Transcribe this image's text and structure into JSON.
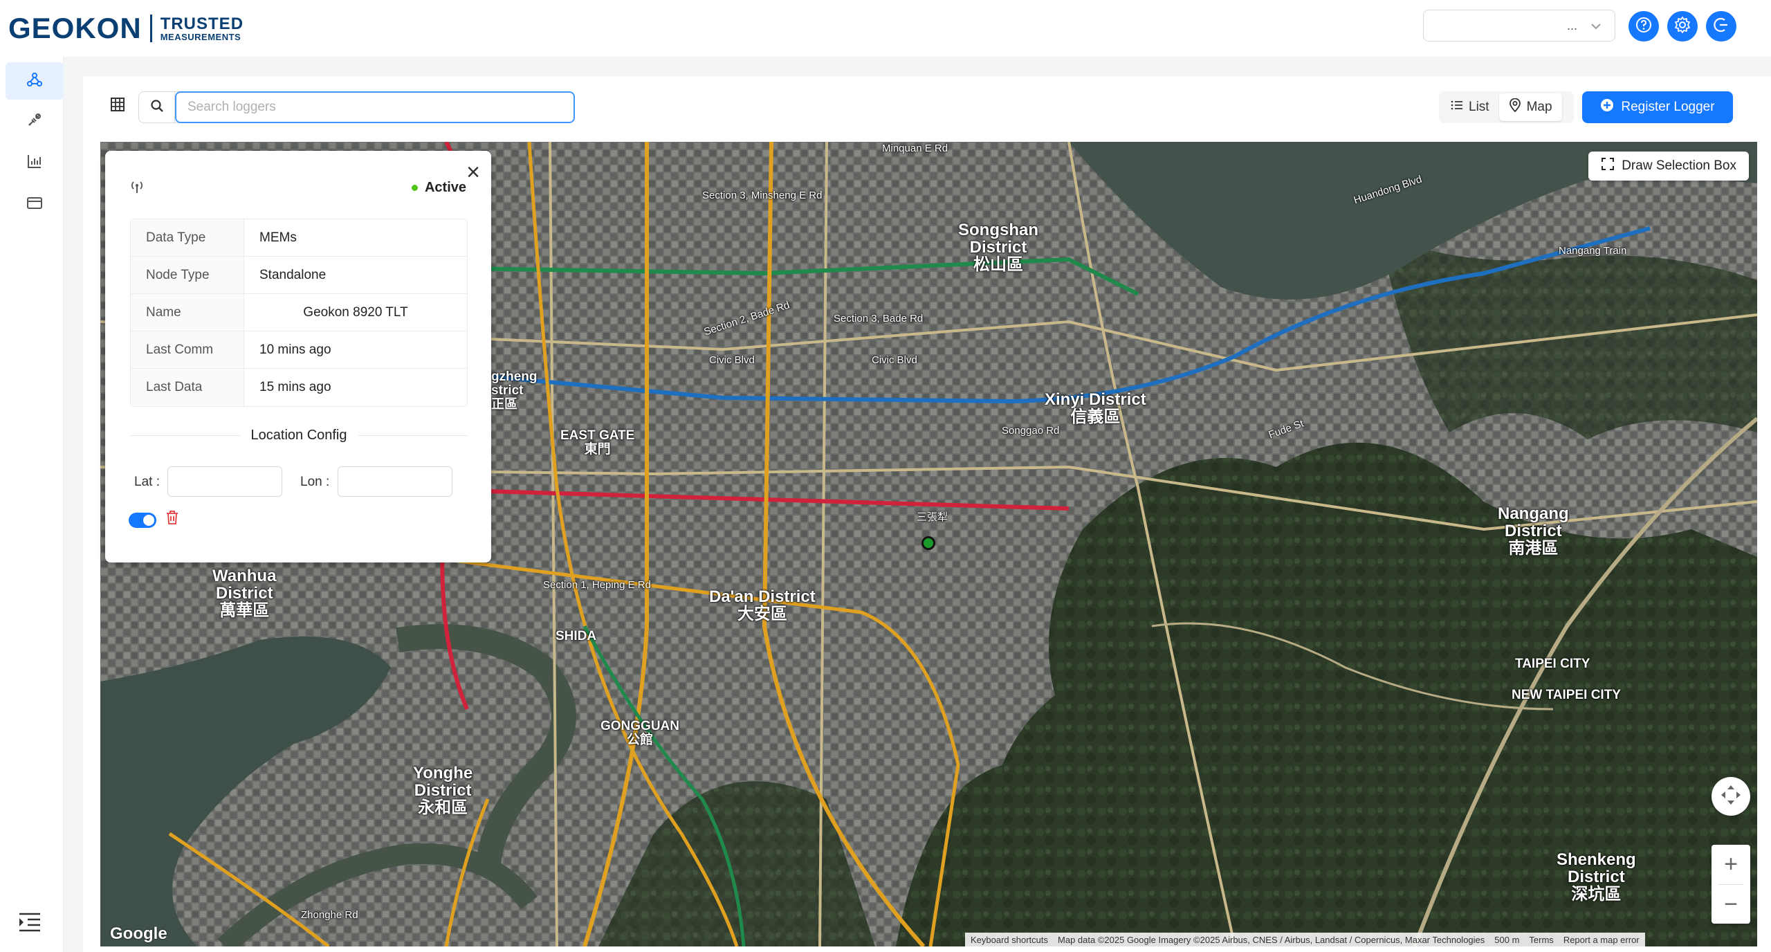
{
  "brand": {
    "name": "GEOKON",
    "tagline_1": "TRUSTED",
    "tagline_2": "MEASUREMENTS"
  },
  "header": {
    "select_value": "...",
    "colors": {
      "accent": "#1677ff",
      "brand": "#0a3f73"
    }
  },
  "sidebar": {
    "items": [
      "network-icon",
      "sensor-icon",
      "chart-icon",
      "card-icon"
    ]
  },
  "toolbar": {
    "search_placeholder": "Search loggers",
    "view_list_label": "List",
    "view_map_label": "Map",
    "register_label": "Register Logger"
  },
  "map": {
    "draw_box_label": "Draw Selection Box",
    "google": "Google",
    "attribution": {
      "shortcuts": "Keyboard shortcuts",
      "data": "Map data ©2025 Google Imagery ©2025 Airbus, CNES / Airbus, Landsat / Copernicus, Maxar Technologies",
      "scale": "500 m",
      "terms": "Terms",
      "report": "Report a map error"
    },
    "labels": {
      "songshan": "Songshan\nDistrict\n松山區",
      "xinyi": "Xinyi District\n信義區",
      "daan": "Da'an District\n大安區",
      "wanhua": "Wanhua\nDistrict\n萬華區",
      "yonghe": "Yonghe\nDistrict\n永和區",
      "nangang": "Nangang\nDistrict\n南港區",
      "shenkeng": "Shenkeng\nDistrict\n深坑區",
      "zhongzheng": "gzheng\nstrict\n正區",
      "eastgate": "EAST GATE\n東門",
      "gongguan": "GONGGUAN\n公館",
      "shida": "SHIDA",
      "taipei_city": "TAIPEI CITY",
      "new_taipei_city": "NEW TAIPEI CITY",
      "civic_blvd": "Civic Blvd",
      "section3_bade": "Section 3, Bade Rd",
      "section2_bade": "Section 2, Bade Rd",
      "section1_heping": "Section 1, Heping E Rd",
      "section3_minsheng": "Section 3, Minsheng E Rd",
      "minquan": "Minquan E Rd",
      "songgao": "Songgao Rd",
      "huandong": "Huandong Blvd",
      "nangang_train": "Nangang Train",
      "fude": "Fude St",
      "sanzhangli": "三張犁",
      "zhongzheng_rd": "Zhonghe Rd"
    }
  },
  "popup": {
    "status": "Active",
    "rows": [
      {
        "key": "Data Type",
        "value": "MEMs"
      },
      {
        "key": "Node Type",
        "value": "Standalone"
      },
      {
        "key": "Name",
        "value": "Geokon 8920 TLT"
      },
      {
        "key": "Last Comm",
        "value": "10 mins ago"
      },
      {
        "key": "Last Data",
        "value": "15 mins ago"
      }
    ],
    "location_title": "Location Config",
    "lat_label": "Lat",
    "lon_label": "Lon",
    "lat_value": "",
    "lon_value": ""
  }
}
